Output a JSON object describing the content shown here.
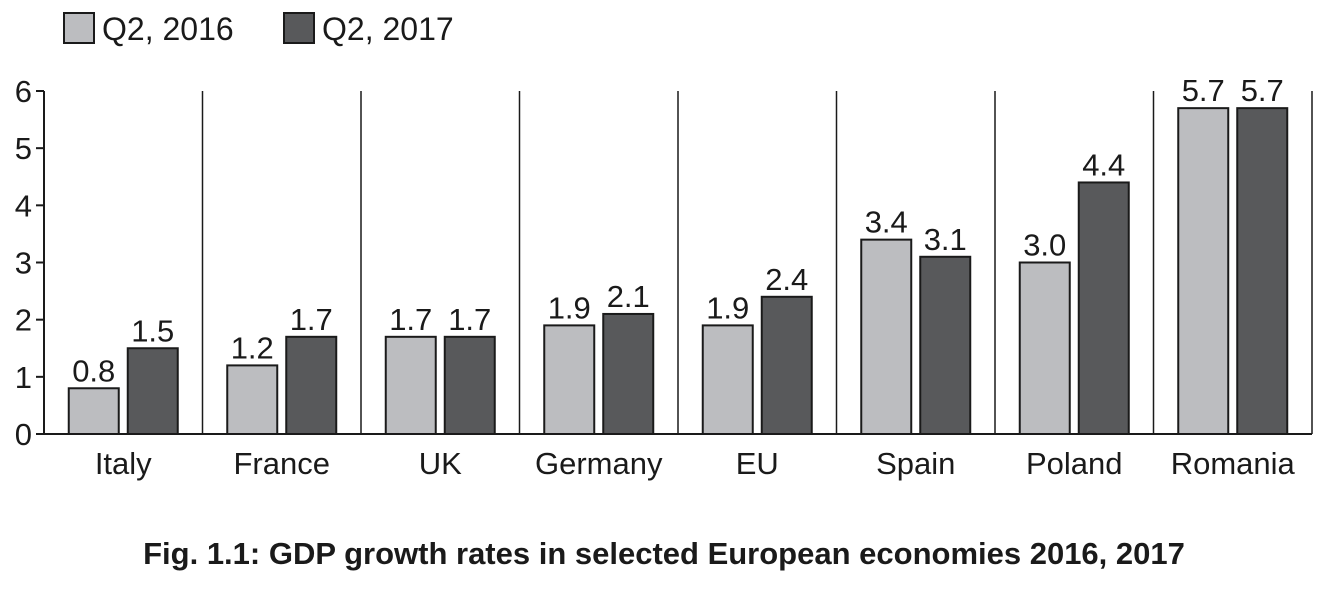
{
  "colors": {
    "series_1": "#bcbdc0",
    "series_2": "#58595b",
    "stroke": "#1a1a1a"
  },
  "caption": "Fig. 1.1: GDP growth rates in selected European economies 2016, 2017",
  "chart_data": {
    "type": "bar",
    "title": "",
    "xlabel": "",
    "ylabel": "",
    "ylim": [
      0,
      6
    ],
    "yticks": [
      0,
      1,
      2,
      3,
      4,
      5,
      6
    ],
    "grid": false,
    "legend_position": "top-left",
    "categories": [
      "Italy",
      "France",
      "UK",
      "Germany",
      "EU",
      "Spain",
      "Poland",
      "Romania"
    ],
    "series": [
      {
        "name": "Q2, 2016",
        "values": [
          0.8,
          1.2,
          1.7,
          1.9,
          1.9,
          3.4,
          3.0,
          5.7
        ],
        "labels": [
          "0.8",
          "1.2",
          "1.7",
          "1.9",
          "1.9",
          "3.4",
          "3.0",
          "5.7"
        ]
      },
      {
        "name": "Q2, 2017",
        "values": [
          1.5,
          1.7,
          1.7,
          2.1,
          2.4,
          3.1,
          4.4,
          5.7
        ],
        "labels": [
          "1.5",
          "1.7",
          "1.7",
          "2.1",
          "2.4",
          "3.1",
          "4.4",
          "5.7"
        ]
      }
    ]
  }
}
